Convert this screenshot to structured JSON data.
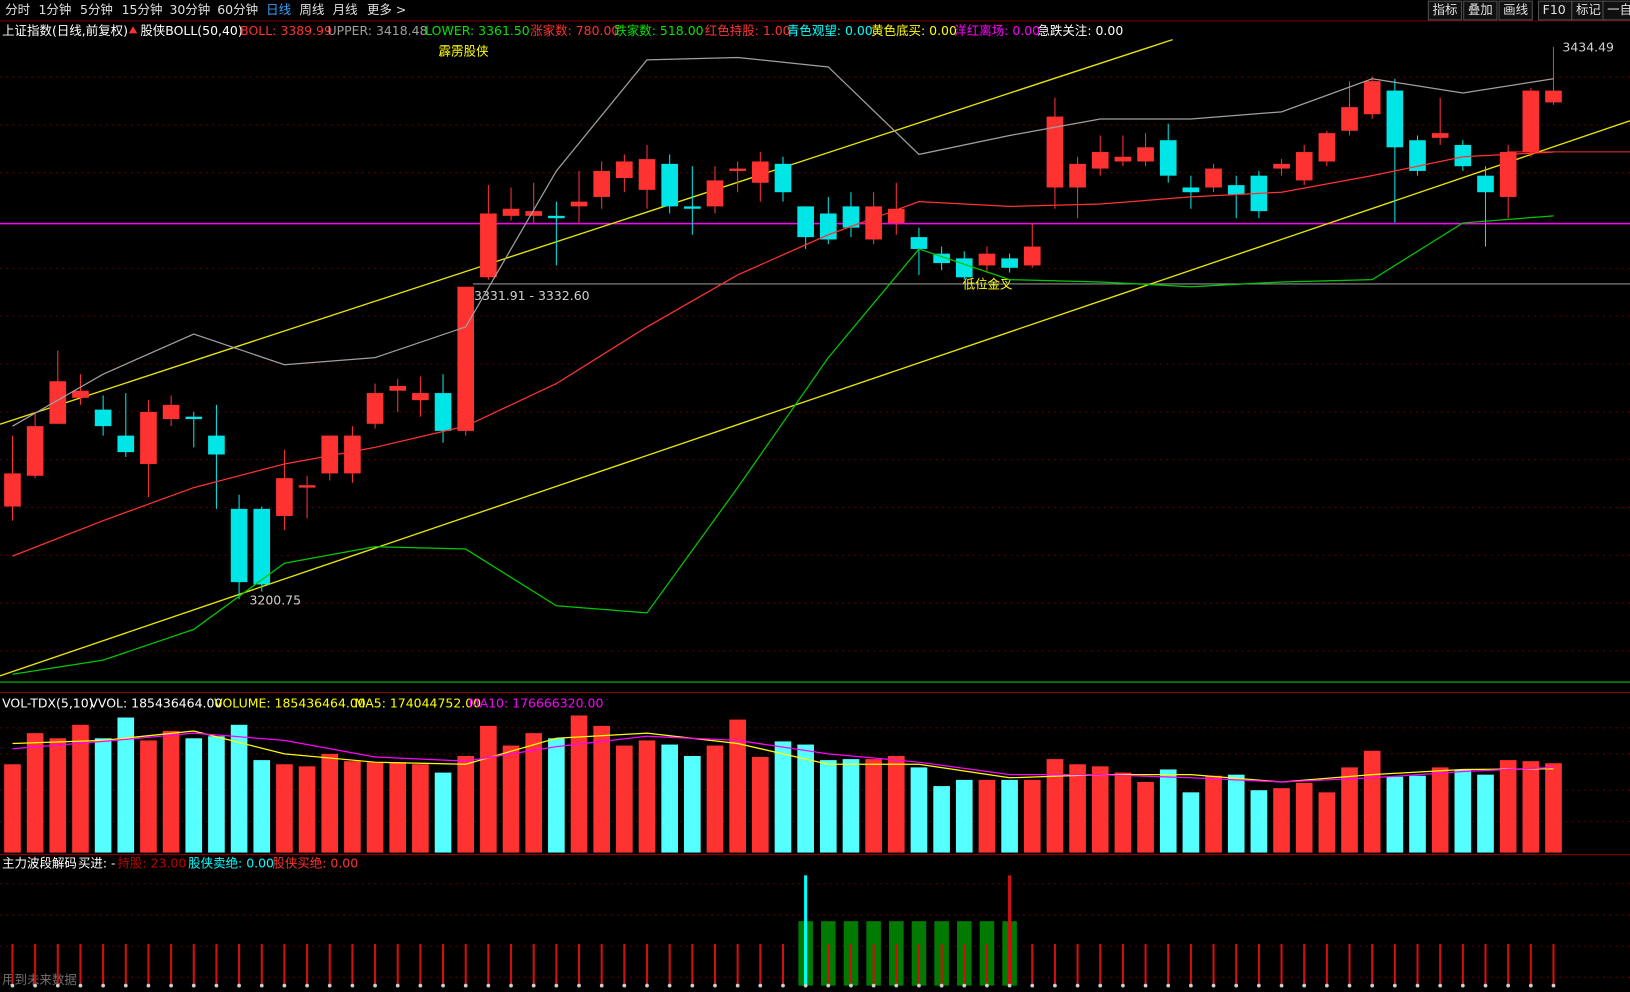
{
  "toolbar": {
    "left": [
      "分时",
      "1分钟",
      "5分钟",
      "15分钟",
      "30分钟",
      "60分钟",
      "日线",
      "周线",
      "月线",
      "更多 >"
    ],
    "active": 6,
    "right": [
      "指标",
      "叠加",
      "画线",
      "F10",
      "标记",
      "一自"
    ]
  },
  "info": [
    {
      "text": "上证指数(日线,前复权)",
      "color": "#ffffff"
    },
    {
      "text": "股侠BOLL(50,40)",
      "color": "#ffffff"
    },
    {
      "text": "BOLL: 3389.99",
      "color": "#ff3232"
    },
    {
      "text": "UPPER: 3418.48",
      "color": "#a0a0a0"
    },
    {
      "text": "LOWER: 3361.50",
      "color": "#00e600"
    },
    {
      "text": "涨家数: 780.00",
      "color": "#ff3232"
    },
    {
      "text": "跌家数: 518.00",
      "color": "#00e600"
    },
    {
      "text": "红色持股: 1.00",
      "color": "#ff3232"
    },
    {
      "text": "青色观望: 0.00",
      "color": "#00ffff"
    },
    {
      "text": "黄色底买: 0.00",
      "color": "#ffff00"
    },
    {
      "text": "洋红离场: 0.00",
      "color": "#ff00ff"
    },
    {
      "text": "急跌关注: 0.00",
      "color": "#ffffff"
    }
  ],
  "annotations": {
    "high": "3434.49",
    "low": "3200.75",
    "range": "3331.91 - 3332.60",
    "brand": "霹雳股侠",
    "cross": "低位金叉"
  },
  "main": {
    "ylim": [
      3165.7,
      3444.6
    ],
    "up_color": "#ff3232",
    "down_color": "#00e6e6",
    "open": [
      3240,
      3253,
      3275,
      3286,
      3281,
      3270,
      3258,
      3277,
      3278,
      3270,
      3239,
      3239,
      3236,
      3248,
      3254,
      3254,
      3275,
      3289,
      3285,
      3288,
      3272,
      3337,
      3363,
      3363,
      3363,
      3367,
      3371,
      3379,
      3374,
      3385,
      3367,
      3367,
      3382,
      3377,
      3385,
      3367,
      3364,
      3367,
      3353,
      3360,
      3354,
      3347,
      3345,
      3342,
      3345,
      3342,
      3375,
      3375,
      3383,
      3386,
      3386,
      3395,
      3375,
      3375,
      3376,
      3380,
      3383,
      3378,
      3386,
      3399,
      3406,
      3416,
      3395,
      3396,
      3393,
      3380,
      3371,
      3390,
      3411
    ],
    "close": [
      3254,
      3274,
      3293,
      3289,
      3274,
      3263,
      3280,
      3283,
      3277,
      3262,
      3208,
      3207,
      3252,
      3249,
      3270,
      3270,
      3288,
      3291,
      3288,
      3272,
      3333,
      3364,
      3366,
      3365,
      3362,
      3369,
      3382,
      3386,
      3387,
      3367,
      3366,
      3378,
      3383,
      3386,
      3373,
      3354,
      3353,
      3358,
      3367,
      3366,
      3349,
      3343,
      3337,
      3347,
      3341,
      3350,
      3405,
      3385,
      3390,
      3388,
      3392,
      3380,
      3373,
      3383,
      3372,
      3365,
      3385,
      3390,
      3398,
      3409,
      3420,
      3392,
      3382,
      3398,
      3384,
      3373,
      3390,
      3416,
      3416
    ],
    "high": [
      3270,
      3280,
      3306,
      3296,
      3287,
      3288,
      3285,
      3287,
      3280,
      3283,
      3245,
      3240,
      3264,
      3253,
      3270,
      3274,
      3292,
      3294,
      3295,
      3296,
      3333,
      3376,
      3375,
      3377,
      3369,
      3382,
      3386,
      3389,
      3393,
      3389,
      3384,
      3384,
      3386,
      3390,
      3388,
      3367,
      3371,
      3373,
      3373,
      3377,
      3358,
      3350,
      3348,
      3350,
      3347,
      3360,
      3413,
      3388,
      3397,
      3397,
      3398,
      3402,
      3380,
      3385,
      3380,
      3382,
      3387,
      3393,
      3399,
      3420,
      3422,
      3421,
      3397,
      3413,
      3395,
      3384,
      3393,
      3417,
      3434.49
    ],
    "low": [
      3234,
      3252,
      3275,
      3283,
      3270,
      3261,
      3244,
      3274,
      3265,
      3239,
      3200.75,
      3204,
      3230,
      3235,
      3251,
      3250,
      3273,
      3280,
      3278,
      3267,
      3270,
      3336,
      3361,
      3360,
      3342,
      3360,
      3366,
      3373,
      3366,
      3364,
      3355,
      3364,
      3373,
      3369,
      3369,
      3349,
      3351,
      3354,
      3351,
      3355,
      3338,
      3340,
      3336,
      3339,
      3339,
      3341,
      3366,
      3362,
      3380,
      3384,
      3384,
      3377,
      3366,
      3373,
      3362,
      3362,
      3380,
      3376,
      3384,
      3397,
      3404,
      3360,
      3380,
      3393,
      3382,
      3350,
      3362,
      3388,
      3410
    ]
  },
  "boll": {
    "index": [
      0,
      4,
      8,
      12,
      16,
      20,
      24,
      28,
      32,
      36,
      40,
      44,
      48,
      52,
      56,
      60,
      64,
      68
    ],
    "lines": [
      {
        "color": "#a0a0a0",
        "values": [
          3274,
          3296,
          3313,
          3300,
          3303,
          3316,
          3382,
          3429,
          3430,
          3426,
          3389,
          3397,
          3404,
          3404,
          3407,
          3421,
          3415,
          3421
        ]
      },
      {
        "color": "#ff3232",
        "values": [
          3219,
          3234,
          3248,
          3258,
          3265,
          3274,
          3292,
          3316,
          3338,
          3355,
          3369,
          3367,
          3368,
          3371,
          3373,
          3380,
          3388,
          3390
        ]
      },
      {
        "color": "#00c800",
        "values": [
          3169,
          3175,
          3188,
          3216,
          3223,
          3222,
          3198,
          3195,
          3248,
          3303,
          3349,
          3336,
          3335,
          3333,
          3335,
          3336,
          3360,
          3363
        ]
      }
    ]
  },
  "vol_info": [
    {
      "text": "VOL-TDX(5,10)",
      "color": "#ffffff"
    },
    {
      "text": "VVOL: 185436464.00",
      "color": "#ffffff"
    },
    {
      "text": "VOLUME: 185436464.00",
      "color": "#ffff00"
    },
    {
      "text": "MA5: 174044752.00",
      "color": "#ffff00"
    },
    {
      "text": "MA10: 176666320.00",
      "color": "#ff00ff"
    }
  ],
  "volume": {
    "ylim": [
      0,
      328000000
    ],
    "values": [
      183300000,
      247900000,
      237200000,
      265200000,
      237200000,
      280300000,
      232800000,
      252300000,
      237200000,
      241500000,
      265200000,
      191900000,
      183300000,
      179000000,
      204800000,
      189700000,
      187600000,
      187600000,
      183300000,
      166000000,
      200500000,
      263000000,
      222100000,
      247900000,
      237200000,
      284600000,
      263000000,
      222100000,
      232800000,
      224200000,
      200500000,
      222100000,
      276000000,
      198400000,
      230700000,
      224200000,
      191900000,
      194000000,
      194000000,
      200500000,
      176800000,
      138000000,
      150900000,
      150900000,
      150900000,
      150900000,
      194000000,
      183300000,
      179000000,
      166000000,
      146600000,
      172500000,
      125000000,
      159500000,
      161700000,
      129400000,
      133700000,
      144500000,
      125000000,
      176800000,
      211300000,
      157400000,
      159500000,
      176800000,
      172500000,
      161700000,
      191900000,
      189700000,
      185436464
    ],
    "ma": [
      {
        "color": "#ffff00",
        "values": [
          226400000,
          232800000,
          252300000,
          204800000,
          187600000,
          183300000,
          237200000,
          247900000,
          226400000,
          183300000,
          183300000,
          155200000,
          161700000,
          161700000,
          146600000,
          161700000,
          172500000,
          174044752
        ]
      },
      {
        "color": "#ff00ff",
        "values": [
          215600000,
          230700000,
          247900000,
          232800000,
          198400000,
          189700000,
          219900000,
          241500000,
          232800000,
          204800000,
          187600000,
          161700000,
          161700000,
          155200000,
          146600000,
          155200000,
          168200000,
          176666320
        ]
      }
    ]
  },
  "sub_info": [
    {
      "text": "主力波段解码",
      "color": "#ffffff"
    },
    {
      "text": "买进: -",
      "color": "#ffffff"
    },
    {
      "text": "持股: 23.00",
      "color": "#c00000"
    },
    {
      "text": "股侠卖绝: 0.00",
      "color": "#00ffff"
    },
    {
      "text": "股侠买绝: 0.00",
      "color": "#ff3232"
    }
  ],
  "footer_note": "用到未来数据"
}
